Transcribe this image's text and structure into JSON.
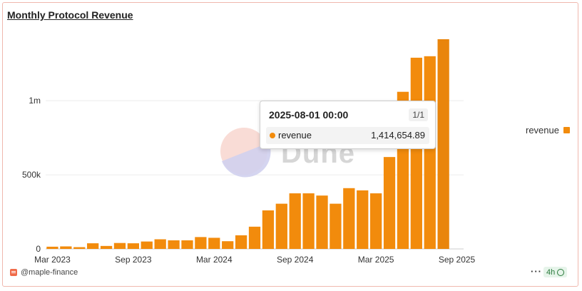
{
  "header": {
    "title": "Monthly Protocol Revenue"
  },
  "watermark": {
    "text": "Dune"
  },
  "tooltip": {
    "date": "2025-08-01 00:00",
    "page": "1/1",
    "series": "revenue",
    "value": "1,414,654.89"
  },
  "legend": {
    "label": "revenue",
    "placement": "right"
  },
  "footer": {
    "owner": "@maple-finance",
    "more": "···",
    "refresh": "4h"
  },
  "colors": {
    "bar": "#f28b0c",
    "bar_highlight": "#e9850c"
  },
  "chart_data": {
    "type": "bar",
    "title": "Monthly Protocol Revenue",
    "xlabel": "",
    "ylabel": "",
    "ylim": [
      0,
      1414654.89
    ],
    "grid": true,
    "yticks": [
      {
        "value": 0,
        "label": "0"
      },
      {
        "value": 500000,
        "label": "500k"
      },
      {
        "value": 1000000,
        "label": "1m"
      }
    ],
    "xticks": [
      {
        "index": 0,
        "label": "Mar 2023"
      },
      {
        "index": 6,
        "label": "Sep 2023"
      },
      {
        "index": 12,
        "label": "Mar 2024"
      },
      {
        "index": 18,
        "label": "Sep 2024"
      },
      {
        "index": 24,
        "label": "Mar 2025"
      },
      {
        "index": 30,
        "label": "Sep 2025"
      }
    ],
    "categories": [
      "2023-03",
      "2023-04",
      "2023-05",
      "2023-06",
      "2023-07",
      "2023-08",
      "2023-09",
      "2023-10",
      "2023-11",
      "2023-12",
      "2024-01",
      "2024-02",
      "2024-03",
      "2024-04",
      "2024-05",
      "2024-06",
      "2024-07",
      "2024-08",
      "2024-09",
      "2024-10",
      "2024-11",
      "2024-12",
      "2025-01",
      "2025-02",
      "2025-03",
      "2025-04",
      "2025-05",
      "2025-06",
      "2025-07",
      "2025-08",
      "2025-09"
    ],
    "series": [
      {
        "name": "revenue",
        "values": [
          15000,
          17000,
          12000,
          38000,
          20000,
          40000,
          38000,
          50000,
          65000,
          58000,
          58000,
          80000,
          75000,
          52000,
          92000,
          150000,
          260000,
          305000,
          375000,
          375000,
          360000,
          305000,
          410000,
          395000,
          375000,
          620000,
          1060000,
          1290000,
          1300000,
          1414654.89,
          0
        ]
      }
    ],
    "highlight_index": 29
  }
}
